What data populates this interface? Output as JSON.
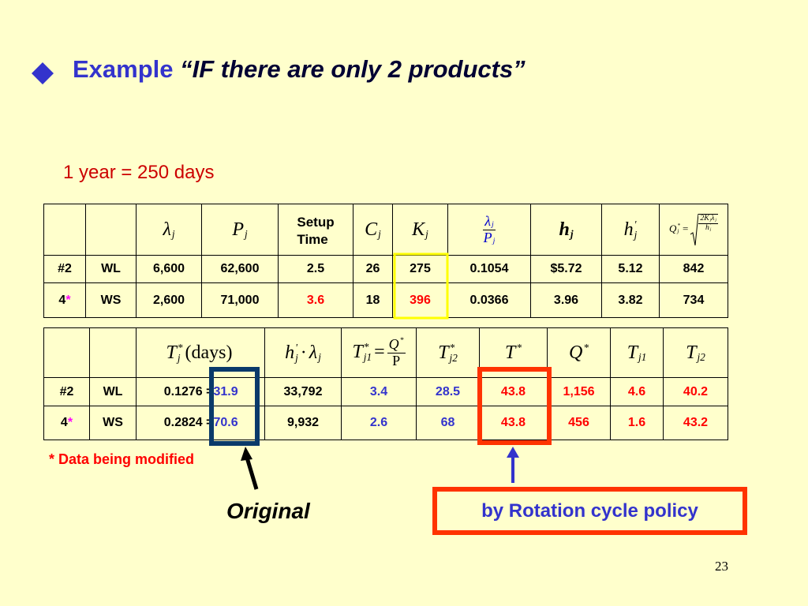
{
  "header": {
    "keyword": "Example",
    "title": "“IF there are only 2 products”"
  },
  "note": "1 year = 250 days",
  "marker": "*",
  "table1": {
    "headers": [
      [
        {
          "base": "λ",
          "sub": "j"
        }
      ],
      [
        {
          "base": "P",
          "sub": "j"
        }
      ],
      [
        {
          "lines": [
            "Setup",
            "Time"
          ]
        }
      ],
      [
        {
          "base": "C",
          "sub": "j"
        }
      ],
      [
        {
          "base": "K",
          "sub": "j"
        }
      ],
      [
        {
          "num": [
            {
              "base": "λ",
              "sub": "j"
            }
          ],
          "den": [
            {
              "base": "P",
              "sub": "j"
            }
          ]
        }
      ],
      [
        {
          "base": "h",
          "sub": "j"
        }
      ],
      [
        {
          "base": "h",
          "sup": "'",
          "sub": "j"
        }
      ],
      [
        {
          "base": "Q",
          "sup": "*",
          "sub": "j"
        },
        "=",
        {
          "root": {
            "num": [
              {
                "base": "2K",
                "sub": "j"
              },
              {
                "base": "λ",
                "sub": "j"
              }
            ],
            "den": [
              {
                "base": "h",
                "sup": "'",
                "sub": "j"
              }
            ]
          }
        }
      ]
    ],
    "rows": [
      [
        "#2",
        "WL",
        "6,600",
        "62,600",
        "2.5",
        "26",
        "275",
        "0.1054",
        "$5.72",
        "5.12",
        "842"
      ],
      [
        "4",
        "WS",
        "2,600",
        "71,000",
        "3.6",
        "18",
        "396",
        "0.0366",
        "3.96",
        "3.82",
        "734"
      ]
    ]
  },
  "table2": {
    "headers": [
      [
        {
          "base": "T",
          "sup": "*",
          "sub": "j"
        },
        "(days)"
      ],
      [
        {
          "base": "h",
          "sup": "'",
          "sub": "j"
        },
        "·",
        {
          "base": "λ",
          "sub": "j"
        }
      ],
      [
        {
          "base": "T",
          "sup": "*",
          "sub": "j1"
        },
        "=",
        {
          "num": [
            {
              "base": "Q",
              "sup": "*"
            }
          ],
          "den": [
            "P"
          ]
        }
      ],
      [
        {
          "base": "T",
          "sup": "*",
          "sub": "j2"
        }
      ],
      [
        {
          "base": "T",
          "sup": "*"
        }
      ],
      [
        {
          "base": "Q",
          "sup": "*"
        }
      ],
      [
        {
          "base": "T",
          "sub": "j1"
        }
      ],
      [
        {
          "base": "T",
          "sub": "j2"
        }
      ]
    ],
    "rows": [
      [
        "#2",
        "WL",
        "0.1276 =",
        "31.9",
        "33,792",
        "3.4",
        "28.5",
        "43.8",
        "1,156",
        "4.6",
        "40.2"
      ],
      [
        "4",
        "WS",
        "0.2824 =",
        "70.6",
        "9,932",
        "2.6",
        "68",
        "43.8",
        "456",
        "1.6",
        "43.2"
      ]
    ]
  },
  "footnote": "* Data being modified",
  "annotations": {
    "original": "Original",
    "rotation": "by Rotation cycle policy"
  },
  "page_number": "23"
}
